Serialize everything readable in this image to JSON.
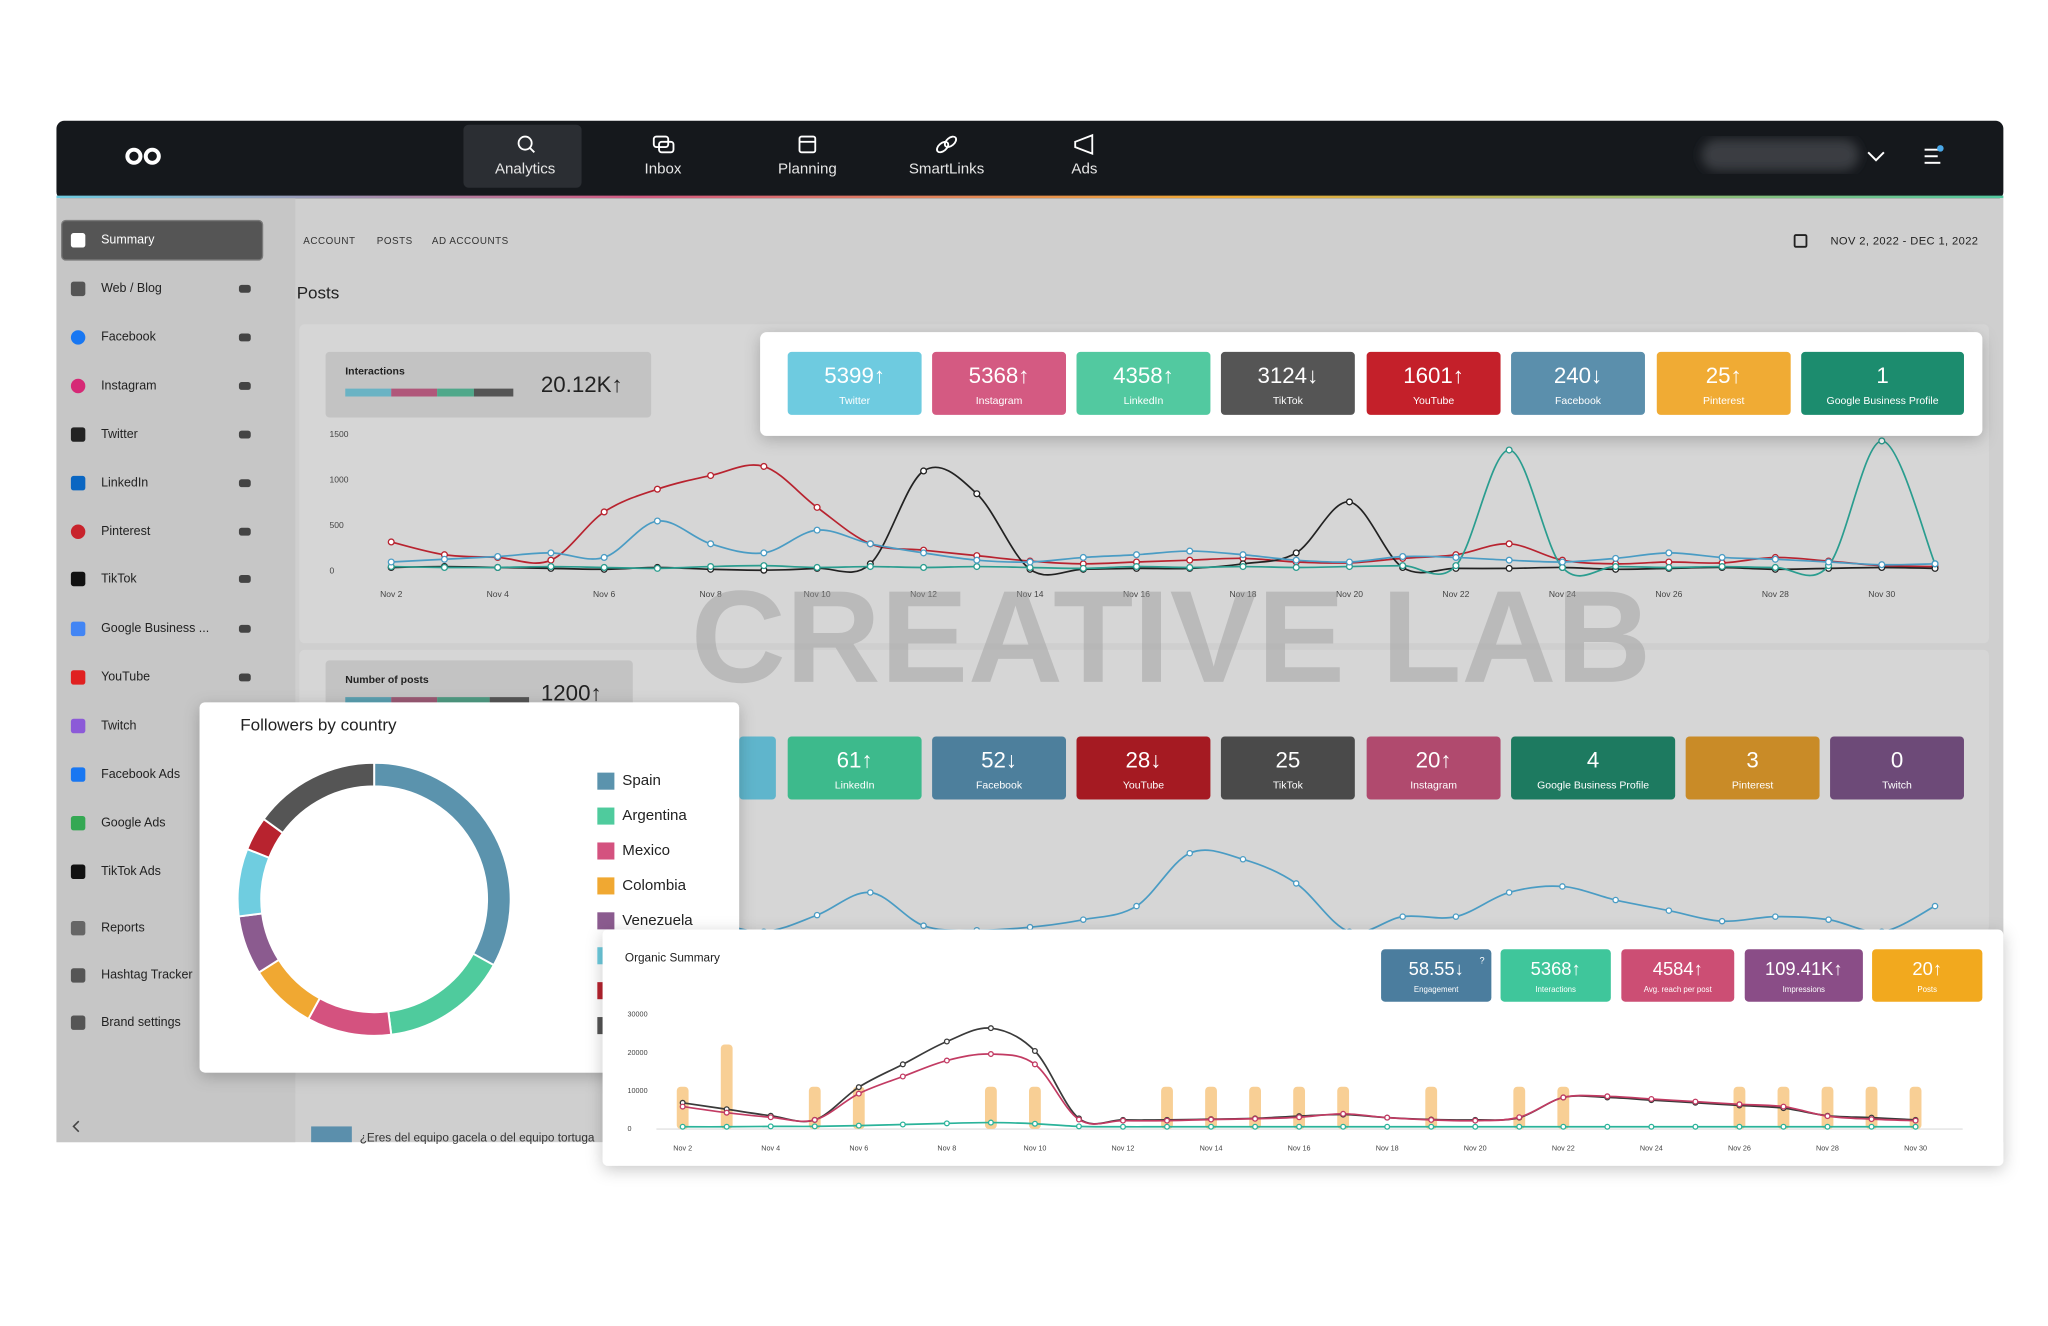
{
  "nav": {
    "items": [
      "Analytics",
      "Inbox",
      "Planning",
      "SmartLinks",
      "Ads"
    ]
  },
  "sidebar": {
    "items": [
      "Summary",
      "Web / Blog",
      "Facebook",
      "Instagram",
      "Twitter",
      "LinkedIn",
      "Pinterest",
      "TikTok",
      "Google Business ...",
      "YouTube",
      "Twitch",
      "Facebook Ads",
      "Google Ads",
      "TikTok Ads",
      "Reports",
      "Hashtag Tracker",
      "Brand settings"
    ]
  },
  "tabs": [
    "ACCOUNT",
    "POSTS",
    "AD ACCOUNTS"
  ],
  "date_range": "NOV 2, 2022 - DEC 1, 2022",
  "section_title": "Posts",
  "watermark": "CREATIVE LAB",
  "interactions": {
    "label": "Interactions",
    "value": "20.12K↑",
    "cards": [
      {
        "value": "5399↑",
        "label": "Twitter",
        "color": "#6ecbe0"
      },
      {
        "value": "5368↑",
        "label": "Instagram",
        "color": "#d45a82"
      },
      {
        "value": "4358↑",
        "label": "LinkedIn",
        "color": "#52c9a0"
      },
      {
        "value": "3124↓",
        "label": "TikTok",
        "color": "#555555"
      },
      {
        "value": "1601↑",
        "label": "YouTube",
        "color": "#c4202a"
      },
      {
        "value": "240↓",
        "label": "Facebook",
        "color": "#5b8fac"
      },
      {
        "value": "25↑",
        "label": "Pinterest",
        "color": "#f0ab34"
      },
      {
        "value": "1",
        "label": "Google Business Profile",
        "color": "#1c8c6e"
      }
    ]
  },
  "posts": {
    "label": "Number of posts",
    "value": "1200↑",
    "cards": [
      {
        "value": "61↑",
        "label": "LinkedIn",
        "color": "#3dba8c"
      },
      {
        "value": "52↓",
        "label": "Facebook",
        "color": "#4d7f9c"
      },
      {
        "value": "28↓",
        "label": "YouTube",
        "color": "#a51a22"
      },
      {
        "value": "25",
        "label": "TikTok",
        "color": "#4a4a4a"
      },
      {
        "value": "20↑",
        "label": "Instagram",
        "color": "#b04a6e"
      },
      {
        "value": "4",
        "label": "Google Business Profile",
        "color": "#1d7a60"
      },
      {
        "value": "3",
        "label": "Pinterest",
        "color": "#c98b27"
      },
      {
        "value": "0",
        "label": "Twitch",
        "color": "#6d4a78"
      }
    ]
  },
  "organic_summary": {
    "title": "Organic Summary",
    "cards": [
      {
        "value": "58.55↓",
        "label": "Engagement",
        "help": "?",
        "color": "#4b7d9e"
      },
      {
        "value": "5368↑",
        "label": "Interactions",
        "color": "#3fc69b"
      },
      {
        "value": "4584↑",
        "label": "Avg. reach per post",
        "color": "#cc4e74"
      },
      {
        "value": "109.41K↑",
        "label": "Impressions",
        "color": "#8a4d87"
      },
      {
        "value": "20↑",
        "label": "Posts",
        "color": "#f2a91e"
      }
    ]
  },
  "blog_post": "¿Eres del equipo gacela o del equipo tortuga",
  "chart_data": [
    {
      "type": "line",
      "categories": [
        "Nov 2",
        null,
        "Nov 4",
        null,
        "Nov 6",
        null,
        "Nov 8",
        null,
        "Nov 10",
        null,
        "Nov 12",
        null,
        "Nov 14",
        null,
        "Nov 16",
        null,
        "Nov 18",
        null,
        "Nov 20",
        null,
        "Nov 22",
        null,
        "Nov 24",
        null,
        "Nov 26",
        null,
        "Nov 28",
        null,
        "Nov 30",
        null
      ],
      "ylim": [
        0,
        1500
      ],
      "yticks": [
        0,
        500,
        1000,
        1500
      ],
      "series": [
        {
          "color": "#b8232f",
          "values": [
            320,
            180,
            150,
            120,
            650,
            900,
            1050,
            1150,
            700,
            300,
            230,
            170,
            110,
            80,
            100,
            120,
            140,
            100,
            90,
            140,
            180,
            300,
            120,
            80,
            100,
            90,
            150,
            110,
            60,
            50
          ]
        },
        {
          "color": "#222222",
          "values": [
            40,
            50,
            40,
            30,
            20,
            40,
            20,
            10,
            30,
            80,
            1100,
            850,
            20,
            20,
            30,
            30,
            80,
            200,
            760,
            40,
            30,
            30,
            40,
            20,
            30,
            40,
            20,
            30,
            40,
            30
          ]
        },
        {
          "color": "#2a9d8f",
          "values": [
            50,
            40,
            40,
            50,
            40,
            30,
            50,
            60,
            40,
            50,
            40,
            50,
            40,
            30,
            50,
            40,
            50,
            40,
            50,
            60,
            60,
            1330,
            40,
            50,
            40,
            50,
            40,
            60,
            1430,
            80
          ]
        },
        {
          "color": "#4a9cc4",
          "values": [
            100,
            130,
            160,
            200,
            150,
            550,
            300,
            200,
            450,
            300,
            200,
            120,
            100,
            150,
            180,
            220,
            180,
            120,
            100,
            160,
            150,
            120,
            100,
            140,
            200,
            150,
            130,
            100,
            70,
            80
          ]
        }
      ]
    },
    {
      "type": "line",
      "ylim": [
        0,
        100
      ],
      "series": [
        {
          "color": "#4a9cc4",
          "values": [
            30,
            28,
            32,
            35,
            30,
            26,
            28,
            22,
            33,
            48,
            26,
            23,
            25,
            30,
            39,
            74,
            70,
            54,
            22,
            32,
            32,
            48,
            52,
            43,
            36,
            29,
            32,
            30,
            22,
            39
          ]
        }
      ]
    },
    {
      "type": "pie",
      "title": "Followers by country",
      "categories": [
        "Spain",
        "Argentina",
        "Mexico",
        "Colombia",
        "Venezuela",
        null,
        null,
        null
      ],
      "values": [
        33,
        15,
        10,
        8,
        7,
        8,
        4,
        15
      ],
      "colors": [
        "#5b93ad",
        "#4fcb9d",
        "#d4527f",
        "#f0a832",
        "#8b5b8f",
        "#6fcde0",
        "#b8232f",
        "#555555"
      ]
    },
    {
      "type": "combo",
      "categories": [
        "Nov 2",
        null,
        "Nov 4",
        null,
        "Nov 6",
        null,
        "Nov 8",
        null,
        "Nov 10",
        null,
        "Nov 12",
        null,
        "Nov 14",
        null,
        "Nov 16",
        null,
        "Nov 18",
        null,
        "Nov 20",
        null,
        "Nov 22",
        null,
        "Nov 24",
        null,
        "Nov 26",
        null,
        "Nov 28",
        null,
        "Nov 30"
      ],
      "ylim": [
        0,
        30000
      ],
      "yticks": [
        0,
        10000,
        20000,
        30000
      ],
      "y2lim": [
        0,
        2.7
      ],
      "series": [
        {
          "kind": "bar",
          "axis": "y2",
          "color": "#f8cf95",
          "values": [
            1,
            2,
            0,
            1,
            1,
            0,
            0,
            1,
            1,
            0,
            0,
            1,
            1,
            1,
            1,
            1,
            0,
            1,
            0,
            1,
            1,
            0,
            0,
            0,
            1,
            1,
            1,
            1,
            1
          ]
        },
        {
          "kind": "line",
          "color": "#3a3a3a",
          "values": [
            6900,
            5200,
            3500,
            2400,
            11000,
            17000,
            23000,
            26500,
            20500,
            2800,
            2400,
            2400,
            2600,
            2800,
            3400,
            3800,
            3000,
            2500,
            2400,
            3000,
            8300,
            8300,
            7600,
            6900,
            6200,
            5500,
            3500,
            3000,
            2400
          ]
        },
        {
          "kind": "line",
          "color": "#c23b63",
          "values": [
            5900,
            4300,
            3100,
            2400,
            9300,
            13800,
            18000,
            19700,
            17000,
            2500,
            2200,
            2200,
            2500,
            2700,
            3100,
            4000,
            3000,
            2400,
            2200,
            3100,
            8300,
            8600,
            7900,
            7200,
            6500,
            5900,
            3400,
            2600,
            2200
          ]
        },
        {
          "kind": "line",
          "color": "#2bb39a",
          "values": [
            600,
            600,
            700,
            700,
            900,
            1200,
            1500,
            1700,
            1400,
            700,
            600,
            600,
            600,
            600,
            600,
            600,
            600,
            600,
            600,
            600,
            600,
            600,
            600,
            600,
            600,
            600,
            600,
            600,
            600
          ]
        }
      ]
    }
  ]
}
